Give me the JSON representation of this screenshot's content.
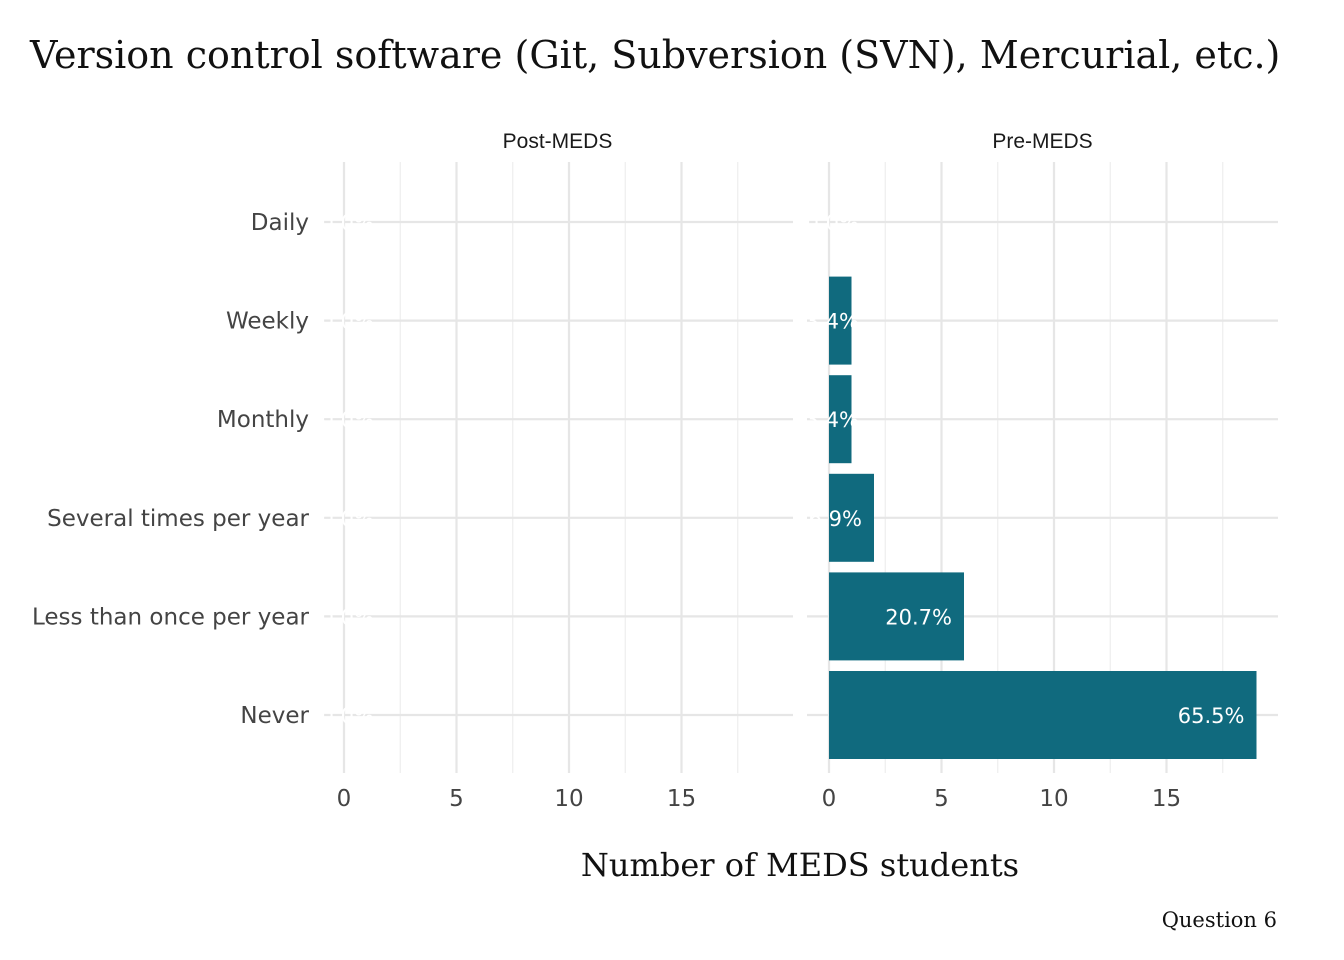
{
  "chart_data": {
    "type": "bar",
    "orientation": "horizontal",
    "title": "Version control software (Git, Subversion (SVN), Mercurial, etc.)",
    "xlabel": "Number of MEDS students",
    "ylabel": "",
    "caption": "Question 6",
    "categories": [
      "Daily",
      "Weekly",
      "Monthly",
      "Several times per year",
      "Less than once per year",
      "Never"
    ],
    "xlim": [
      0,
      19
    ],
    "xticks": [
      0,
      5,
      10,
      15
    ],
    "grid": true,
    "bar_color": "#106a7e",
    "facets": [
      {
        "name": "Post-MEDS",
        "values": [
          0,
          0,
          0,
          0,
          0,
          0
        ],
        "labels": [
          "0.0%",
          "0.0%",
          "0.0%",
          "0.0%",
          "0.0%",
          "0.0%"
        ]
      },
      {
        "name": "Pre-MEDS",
        "values": [
          0,
          1,
          1,
          2,
          6,
          19
        ],
        "labels": [
          "0.0%",
          "3.4%",
          "3.4%",
          "6.9%",
          "20.7%",
          "65.5%"
        ]
      }
    ]
  }
}
